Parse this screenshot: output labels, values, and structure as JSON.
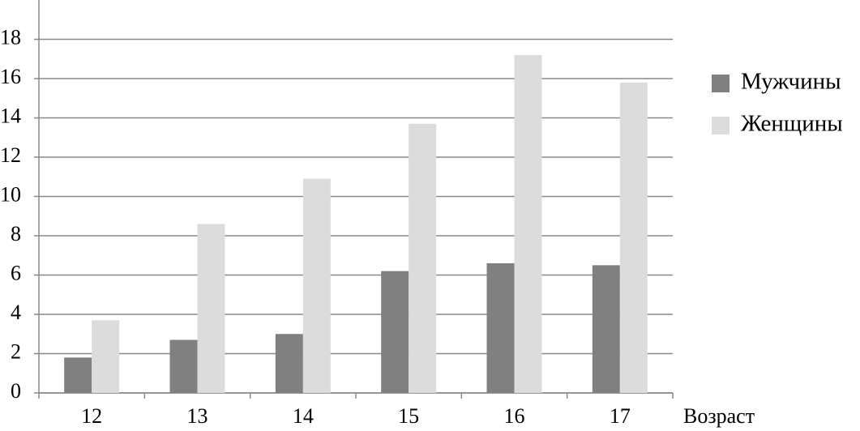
{
  "chart_data": {
    "type": "bar",
    "x_label": "Возраст",
    "categories": [
      "12",
      "13",
      "14",
      "15",
      "16",
      "17"
    ],
    "series": [
      {
        "name": "Мужчины",
        "color": "#808080",
        "values": [
          1.8,
          2.7,
          3.0,
          6.2,
          6.6,
          6.5
        ]
      },
      {
        "name": "Женщины",
        "color": "#dcdcdc",
        "values": [
          3.7,
          8.6,
          10.9,
          13.7,
          17.2,
          15.8
        ]
      }
    ],
    "ylim": [
      0,
      20
    ],
    "yticks": [
      0,
      2,
      4,
      6,
      8,
      10,
      12,
      14,
      16,
      18
    ],
    "grid": true,
    "legend": "right"
  }
}
